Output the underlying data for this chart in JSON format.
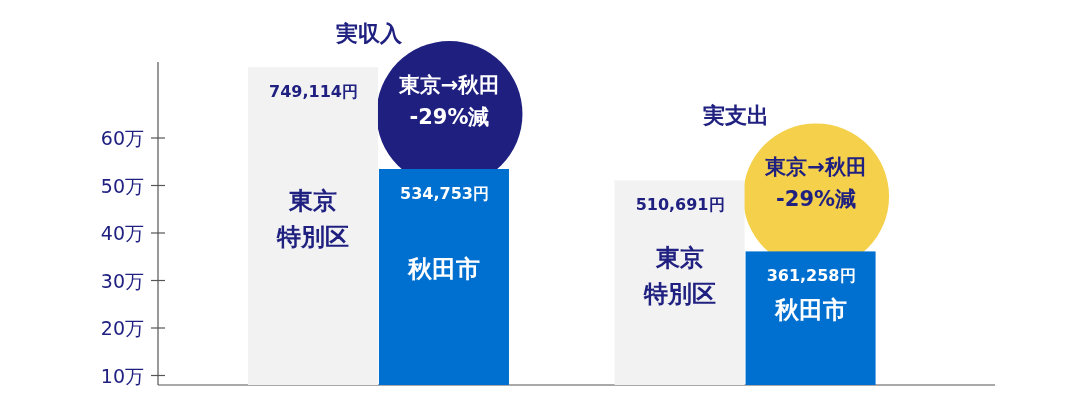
{
  "chart_data": {
    "type": "bar",
    "categories": [
      "実収入",
      "実支出"
    ],
    "series": [
      {
        "name": "東京特別区",
        "color": "#f2f2f2",
        "axis": "y2",
        "values": [
          749114,
          510691
        ],
        "value_labels": [
          "749,114円",
          "510,691円"
        ]
      },
      {
        "name": "秋田市",
        "color": "#0070d0",
        "axis": "y2",
        "values": [
          534753,
          361258
        ],
        "value_labels": [
          "534,753円",
          "361,258円"
        ]
      }
    ],
    "ylim": [
      8,
      76
    ],
    "yticks": [
      {
        "value": 10,
        "label": "10万"
      },
      {
        "value": 20,
        "label": "20万"
      },
      {
        "value": 30,
        "label": "30万"
      },
      {
        "value": 40,
        "label": "40万"
      },
      {
        "value": 50,
        "label": "50万"
      },
      {
        "value": 60,
        "label": "60万"
      }
    ],
    "y2lim": [
      80000,
      760000
    ],
    "annotations": [
      "東京→秋田 -29%減",
      "東京→秋田 -29%減"
    ],
    "grid": false
  }
}
